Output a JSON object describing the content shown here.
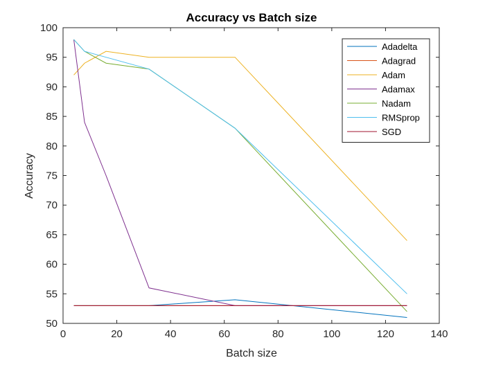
{
  "chart_data": {
    "type": "line",
    "title": "Accuracy vs Batch size",
    "xlabel": "Batch size",
    "ylabel": "Accuracy",
    "xlim": [
      0,
      140
    ],
    "ylim": [
      50,
      100
    ],
    "xticks": [
      0,
      20,
      40,
      60,
      80,
      100,
      120,
      140
    ],
    "yticks": [
      50,
      55,
      60,
      65,
      70,
      75,
      80,
      85,
      90,
      95,
      100
    ],
    "x": [
      4,
      8,
      16,
      32,
      64,
      128
    ],
    "grid": false,
    "legend_position": "top-right",
    "series": [
      {
        "name": "Adadelta",
        "color": "#0072BD",
        "values": [
          53,
          53,
          53,
          53,
          54,
          51
        ]
      },
      {
        "name": "Adagrad",
        "color": "#D95319",
        "values": [
          53,
          53,
          53,
          53,
          53,
          53
        ]
      },
      {
        "name": "Adam",
        "color": "#EDB120",
        "values": [
          92,
          94,
          96,
          95,
          95,
          64
        ]
      },
      {
        "name": "Adamax",
        "color": "#7E2F8E",
        "values": [
          98,
          84,
          75,
          56,
          53,
          53
        ]
      },
      {
        "name": "Nadam",
        "color": "#77AC30",
        "values": [
          98,
          96,
          94,
          93,
          83,
          52
        ]
      },
      {
        "name": "RMSprop",
        "color": "#4DBEEE",
        "values": [
          98,
          96,
          95,
          93,
          83,
          55
        ]
      },
      {
        "name": "SGD",
        "color": "#A2142F",
        "values": [
          53,
          53,
          53,
          53,
          53,
          53
        ]
      }
    ]
  }
}
